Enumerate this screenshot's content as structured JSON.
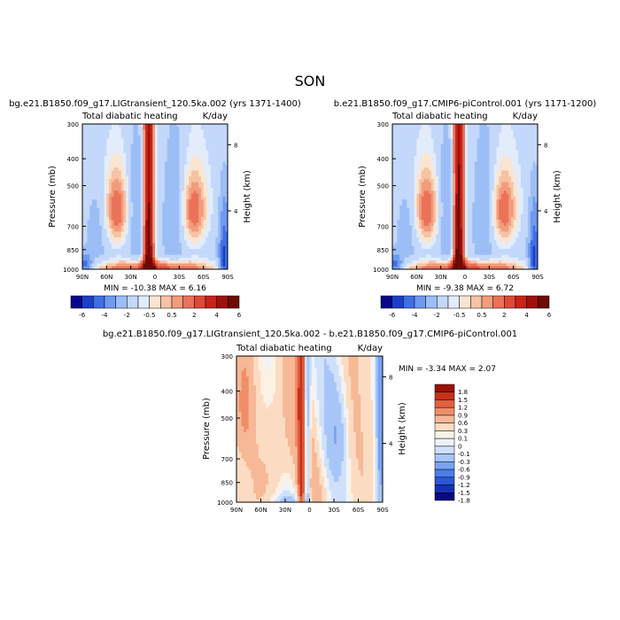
{
  "page": {
    "title": "SON"
  },
  "colors": {
    "panel_scale": [
      "#08088a",
      "#1c3fc8",
      "#3f6fe6",
      "#6f9af0",
      "#9cbef6",
      "#c3d8fa",
      "#e2ecfb",
      "#fbe5d0",
      "#f6c3a4",
      "#f29c7c",
      "#ea7258",
      "#de4a36",
      "#c82418",
      "#a0110c",
      "#6e0b05"
    ],
    "diff_scale": [
      "#0a0a82",
      "#1531b3",
      "#2a57d4",
      "#4a7ee8",
      "#78a3f2",
      "#a7c5f7",
      "#cfe0fa",
      "#ecf3fd",
      "#fdf1e5",
      "#fbdcc2",
      "#f6b896",
      "#f08e68",
      "#e4603f",
      "#c8301c",
      "#9b1107"
    ]
  },
  "chart_data": [
    {
      "type": "heatmap",
      "title": "bg.e21.B1850.f09_g17.LIGtransient_120.5ka.002 (yrs 1371-1400)",
      "subtitle_left": "Total diabatic heating",
      "subtitle_right": "K/day",
      "ylabel": "Pressure (mb)",
      "ylabel_right": "Height (km)",
      "xticks": [
        "90N",
        "60N",
        "30N",
        "0",
        "30S",
        "60S",
        "90S"
      ],
      "yticks": [
        "300",
        "400",
        "500",
        "700",
        "850",
        "1000"
      ],
      "yticks_right": [
        "8",
        "4"
      ],
      "stats": "MIN = -10.38   MAX =   6.16",
      "min": -10.38,
      "max": 6.16,
      "colorbar_labels": [
        "-6",
        "-4",
        "-2",
        "-0.5",
        "0.5",
        "2",
        "4",
        "6"
      ],
      "colorbar_levels": [
        -6,
        -5,
        -4,
        -3,
        -2,
        -1,
        -0.5,
        0,
        0.5,
        1,
        2,
        3,
        4,
        5,
        6
      ]
    },
    {
      "type": "heatmap",
      "title": "b.e21.B1850.f09_g17.CMIP6-piControl.001 (yrs 1171-1200)",
      "subtitle_left": "Total diabatic heating",
      "subtitle_right": "K/day",
      "ylabel": "Pressure (mb)",
      "ylabel_right": "Height (km)",
      "xticks": [
        "90N",
        "60N",
        "30N",
        "0",
        "30S",
        "60S",
        "90S"
      ],
      "yticks": [
        "300",
        "400",
        "500",
        "700",
        "850",
        "1000"
      ],
      "yticks_right": [
        "8",
        "4"
      ],
      "stats": "MIN = -9.38   MAX =   6.72",
      "min": -9.38,
      "max": 6.72,
      "colorbar_labels": [
        "-6",
        "-4",
        "-2",
        "-0.5",
        "0.5",
        "2",
        "4",
        "6"
      ],
      "colorbar_levels": [
        -6,
        -5,
        -4,
        -3,
        -2,
        -1,
        -0.5,
        0,
        0.5,
        1,
        2,
        3,
        4,
        5,
        6
      ]
    },
    {
      "type": "heatmap",
      "title": "bg.e21.B1850.f09_g17.LIGtransient_120.5ka.002 - b.e21.B1850.f09_g17.CMIP6-piControl.001",
      "subtitle_left": "Total diabatic heating",
      "subtitle_right": "K/day",
      "ylabel": "Pressure (mb)",
      "ylabel_right": "Height (km)",
      "xticks": [
        "90N",
        "60N",
        "30N",
        "0",
        "30S",
        "60S",
        "90S"
      ],
      "yticks": [
        "300",
        "400",
        "500",
        "700",
        "850",
        "1000"
      ],
      "yticks_right": [
        "8",
        "4"
      ],
      "stats": "MIN =  -3.34   MAX =   2.07",
      "min": -3.34,
      "max": 2.07,
      "colorbar_labels": [
        "1.8",
        "1.5",
        "1.2",
        "0.9",
        "0.6",
        "0.3",
        "0.1",
        "0",
        "-0.1",
        "-0.3",
        "-0.6",
        "-0.9",
        "-1.2",
        "-1.5",
        "-1.8"
      ]
    }
  ]
}
